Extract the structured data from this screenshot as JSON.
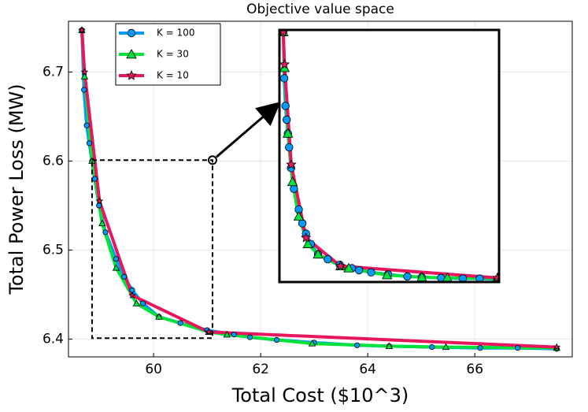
{
  "chart_data": {
    "type": "line",
    "title": "Objective value space",
    "x_label": "Total Cost ($10^3)",
    "y_label": "Total Power Loss (MW)",
    "xlim": [
      58.41,
      67.82
    ],
    "ylim": [
      6.38,
      6.757
    ],
    "xticks": [
      60,
      62,
      64,
      66
    ],
    "yticks": [
      6.4,
      6.5,
      6.6,
      6.7
    ],
    "grid": true,
    "legend": "upper-left",
    "zoom_box": {
      "xlim": [
        58.85,
        61.1
      ],
      "ylim": [
        6.401,
        6.601
      ]
    },
    "inset": {
      "xlim": [
        58.5,
        67.6
      ],
      "ylim": [
        6.385,
        6.75
      ]
    },
    "series": [
      {
        "name": "K = 100",
        "color": "#009af9",
        "marker": "circle",
        "x": [
          58.66,
          58.7,
          58.75,
          58.8,
          58.85,
          58.9,
          58.98,
          59.1,
          59.3,
          59.45,
          59.6,
          59.8,
          60.1,
          60.5,
          61.0,
          61.5,
          61.8,
          62.3,
          63.0,
          63.8,
          64.4,
          65.2,
          66.1,
          66.8,
          67.53
        ],
        "values": [
          6.747,
          6.68,
          6.64,
          6.62,
          6.6,
          6.58,
          6.55,
          6.52,
          6.49,
          6.47,
          6.455,
          6.44,
          6.425,
          6.418,
          6.41,
          6.405,
          6.402,
          6.399,
          6.396,
          6.393,
          6.392,
          6.391,
          6.39,
          6.39,
          6.389
        ]
      },
      {
        "name": "K = 30",
        "color": "#00e33b",
        "marker": "triangle",
        "x": [
          58.66,
          58.71,
          58.85,
          59.04,
          59.3,
          59.68,
          60.1,
          61.03,
          61.37,
          62.96,
          64.4,
          65.46,
          67.53
        ],
        "values": [
          6.747,
          6.695,
          6.6,
          6.53,
          6.48,
          6.44,
          6.425,
          6.408,
          6.405,
          6.395,
          6.392,
          6.391,
          6.39
        ]
      },
      {
        "name": "K = 10",
        "color": "#e8175d",
        "marker": "star",
        "x": [
          58.66,
          58.71,
          58.99,
          59.6,
          61.03,
          67.53
        ],
        "values": [
          6.747,
          6.7,
          6.555,
          6.449,
          6.408,
          6.391
        ]
      }
    ]
  }
}
